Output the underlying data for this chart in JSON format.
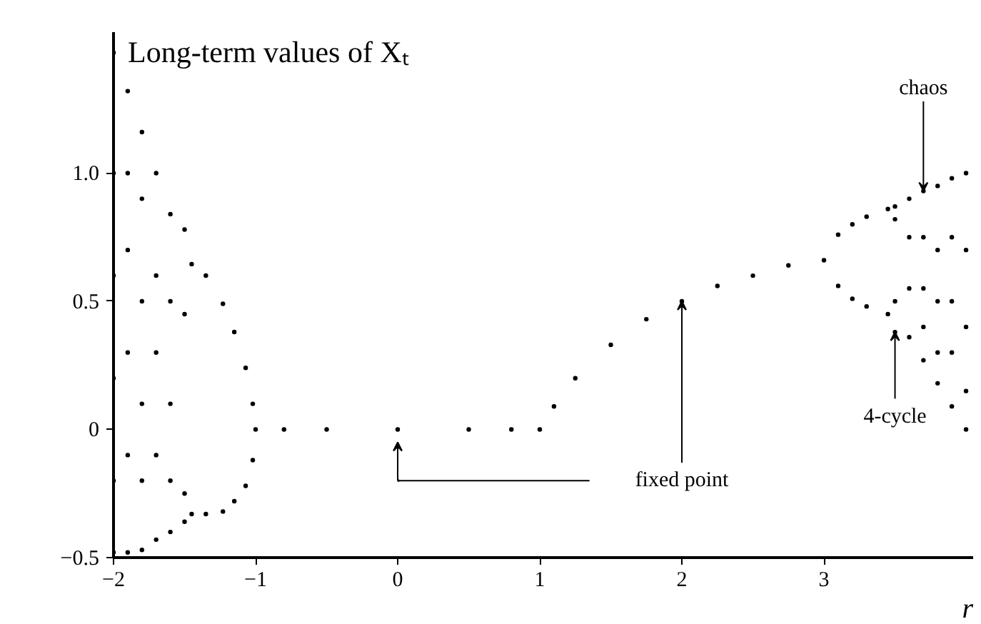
{
  "chart_data": {
    "type": "scatter",
    "title": "Long-term values of Xₜ",
    "xlabel": "r",
    "xlim": [
      -2,
      4.05
    ],
    "ylim": [
      -0.5,
      1.55
    ],
    "xticks": [
      {
        "value": -2,
        "label": "−2"
      },
      {
        "value": -1,
        "label": "−1"
      },
      0,
      1,
      2,
      3
    ],
    "yticks": [
      {
        "value": -0.5,
        "label": "−0.5"
      },
      0,
      0.5,
      {
        "value": 1,
        "label": "1.0"
      }
    ],
    "marker": "circle",
    "annotations": [
      {
        "text": "chaos",
        "x": 3.7,
        "y": 0.93
      },
      {
        "text": "4-cycle",
        "x": 3.5,
        "y": 0.38
      },
      {
        "text": "fixed point",
        "x": 2,
        "y": 0.5
      }
    ],
    "series": [
      {
        "color": "#000000",
        "x": [
          -2,
          -2,
          -2,
          -2,
          -2,
          -2,
          -1.9,
          -1.9,
          -1.9,
          -1.9,
          -1.9,
          -1.9,
          -1.8,
          -1.8,
          -1.8,
          -1.8,
          -1.8,
          -1.8,
          -1.7,
          -1.7,
          -1.7,
          -1.7,
          -1.7,
          -1.6,
          -1.6,
          -1.6,
          -1.6,
          -1.6,
          -1.5,
          -1.5,
          -1.5,
          -1.5,
          -1.45,
          -1.35,
          -1.23,
          -1.15,
          -1.07,
          -1.02,
          -1,
          -1.45,
          -1.35,
          -1.23,
          -1.15,
          -1.07,
          -1.02,
          -0.8,
          -0.5,
          0,
          0.5,
          0.8,
          1,
          1.1,
          1.25,
          1.5,
          1.75,
          2,
          2.25,
          2.5,
          2.75,
          3,
          3.1,
          3.2,
          3.3,
          3.45,
          3.1,
          3.2,
          3.3,
          3.45,
          3.5,
          3.5,
          3.5,
          3.5,
          3.6,
          3.6,
          3.6,
          3.6,
          3.7,
          3.7,
          3.7,
          3.7,
          3.7,
          3.8,
          3.8,
          3.8,
          3.8,
          3.8,
          3.9,
          3.9,
          3.9,
          3.9,
          3.9,
          4,
          4,
          4,
          4,
          4
        ],
        "values": [
          -0.48,
          -0.2,
          0.2,
          0.6,
          1.0,
          1.47,
          -0.48,
          -0.1,
          0.3,
          0.7,
          1.0,
          1.32,
          -0.47,
          -0.2,
          0.1,
          0.5,
          0.9,
          1.16,
          -0.43,
          -0.1,
          0.3,
          0.6,
          1.0,
          -0.4,
          -0.2,
          0.1,
          0.5,
          0.84,
          -0.36,
          -0.25,
          0.45,
          0.78,
          0.645,
          0.6,
          0.49,
          0.38,
          0.24,
          0.1,
          0,
          -0.33,
          -0.33,
          -0.32,
          -0.28,
          -0.22,
          -0.12,
          0,
          0,
          0,
          0,
          0,
          0,
          0.09,
          0.2,
          0.33,
          0.43,
          0.5,
          0.56,
          0.6,
          0.64,
          0.66,
          0.76,
          0.8,
          0.83,
          0.86,
          0.56,
          0.51,
          0.48,
          0.45,
          0.87,
          0.82,
          0.5,
          0.38,
          0.9,
          0.75,
          0.55,
          0.36,
          0.93,
          0.75,
          0.55,
          0.4,
          0.27,
          0.95,
          0.7,
          0.5,
          0.3,
          0.18,
          0.98,
          0.75,
          0.5,
          0.3,
          0.09,
          1.0,
          0.7,
          0.4,
          0.15,
          0.0
        ]
      }
    ]
  }
}
